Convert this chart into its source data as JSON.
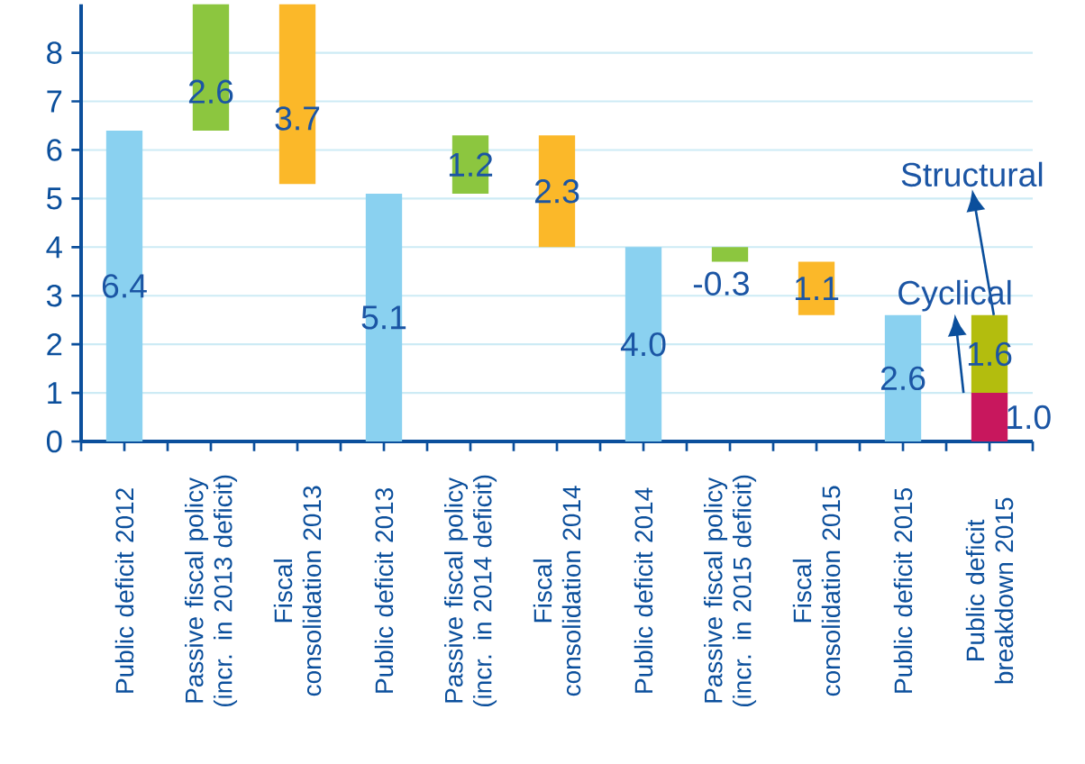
{
  "chart_data": {
    "type": "bar",
    "categories": [
      "Public deficit 2012",
      "Passive fiscal policy (incr. in 2013 deficit)",
      "Fiscal consolidation 2013",
      "Public deficit 2013",
      "Passive fiscal policy (incr. in 2014 deficit)",
      "Fiscal consolidation 2014",
      "Public deficit 2014",
      "Passive fiscal policy (incr. in 2015 deficit)",
      "Fiscal consolidation 2015",
      "Public deficit 2015",
      "Public deficit breakdown 2015"
    ],
    "series": [
      {
        "color": "#8ad1f0",
        "values": [
          6.4,
          null,
          null,
          5.1,
          null,
          null,
          4.0,
          null,
          null,
          2.6,
          null
        ],
        "base": [
          0,
          null,
          null,
          0,
          null,
          null,
          0,
          null,
          null,
          0,
          null
        ],
        "value_labels": [
          "6.4",
          null,
          null,
          "5.1",
          null,
          null,
          "4.0",
          null,
          null,
          "2.6",
          null
        ]
      },
      {
        "color": "#8cc63f",
        "values": [
          null,
          2.6,
          null,
          null,
          1.2,
          null,
          null,
          -0.3,
          null,
          null,
          null
        ],
        "base": [
          null,
          6.4,
          null,
          null,
          5.1,
          null,
          null,
          4.0,
          null,
          null,
          null
        ],
        "value_labels": [
          null,
          "2.6",
          null,
          null,
          "1.2",
          null,
          null,
          "-0.3",
          null,
          null,
          null
        ]
      },
      {
        "color": "#fbb829",
        "values": [
          null,
          null,
          3.7,
          null,
          null,
          2.3,
          null,
          null,
          1.1,
          null,
          null
        ],
        "base": [
          null,
          null,
          5.3,
          null,
          null,
          4.0,
          null,
          null,
          2.6,
          null,
          null
        ],
        "value_labels": [
          null,
          null,
          "3.7",
          null,
          null,
          "2.3",
          null,
          null,
          "1.1",
          null,
          null
        ]
      },
      {
        "color": "#c8175d",
        "values": [
          null,
          null,
          null,
          null,
          null,
          null,
          null,
          null,
          null,
          null,
          1.0
        ],
        "base": [
          null,
          null,
          null,
          null,
          null,
          null,
          null,
          null,
          null,
          null,
          0
        ],
        "value_labels": [
          null,
          null,
          null,
          null,
          null,
          null,
          null,
          null,
          null,
          null,
          "1.0"
        ]
      },
      {
        "color": "#b3bd0e",
        "values": [
          null,
          null,
          null,
          null,
          null,
          null,
          null,
          null,
          null,
          null,
          1.6
        ],
        "base": [
          null,
          null,
          null,
          null,
          null,
          null,
          null,
          null,
          null,
          null,
          1.0
        ],
        "value_labels": [
          null,
          null,
          null,
          null,
          null,
          null,
          null,
          null,
          null,
          null,
          "1.6"
        ]
      }
    ],
    "ylim": [
      0,
      9
    ],
    "yticks": [
      0,
      1,
      2,
      3,
      4,
      5,
      6,
      7,
      8
    ],
    "grid": "y",
    "annotations": [
      "Structural",
      "Cyclical"
    ]
  }
}
